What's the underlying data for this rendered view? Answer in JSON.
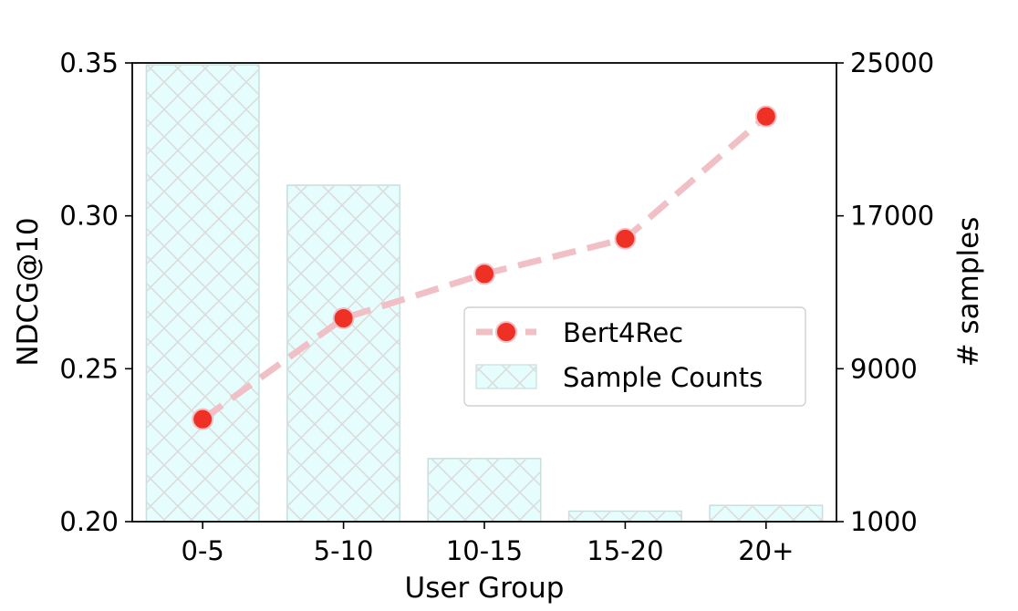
{
  "chart_data": {
    "type": "bar",
    "xlabel": "User Group",
    "ylabel": "NDCG@10",
    "y2label": "# samples",
    "categories": [
      "0-5",
      "5-10",
      "10-15",
      "15-20",
      "20+"
    ],
    "ylim": [
      0.2,
      0.35
    ],
    "yticks": [
      "0.20",
      "0.25",
      "0.30",
      "0.35"
    ],
    "y2lim": [
      1000,
      25000
    ],
    "y2ticks": [
      "1000",
      "9000",
      "17000",
      "25000"
    ],
    "series": [
      {
        "name": "Sample Counts",
        "kind": "bar",
        "axis": "right",
        "values": [
          24900,
          18600,
          4300,
          1550,
          1850
        ],
        "color": "#e6fdfd",
        "edge_color": "#c9dede",
        "hatch": "x"
      },
      {
        "name": "Bert4Rec",
        "kind": "line",
        "axis": "left",
        "values": [
          0.2335,
          0.2665,
          0.281,
          0.2925,
          0.3325
        ],
        "line_color": "#f1c0c6",
        "marker_color": "#ee3124",
        "line_style": "dashed"
      }
    ],
    "legend_position": "center-right",
    "grid": false
  }
}
